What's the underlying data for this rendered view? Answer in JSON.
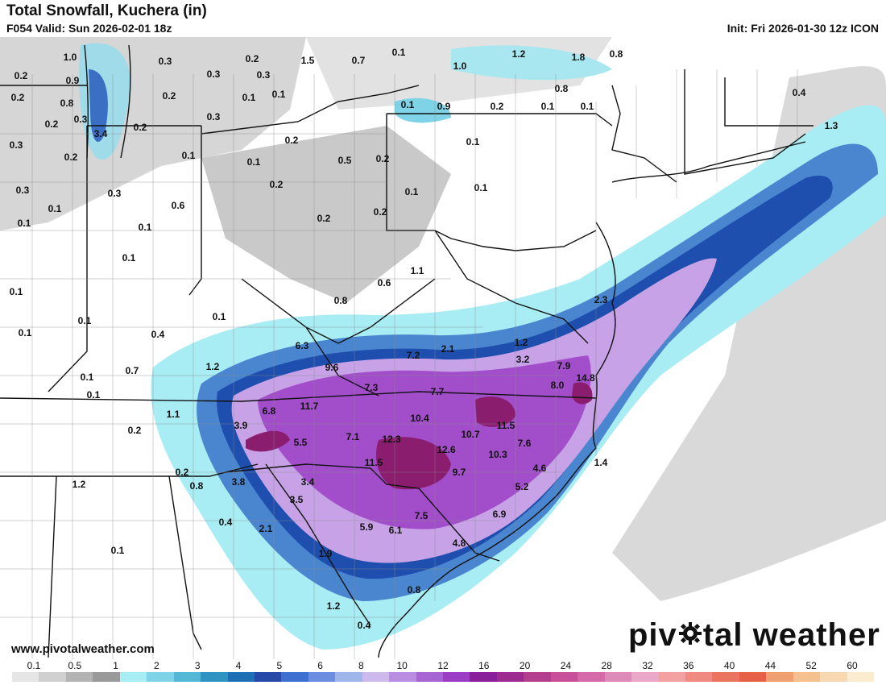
{
  "header": {
    "title": "Total Snowfall, Kuchera (in)",
    "valid": "F054 Valid: Sun 2026-02-01 18z",
    "init": "Init: Fri 2026-01-30 12z ICON"
  },
  "map_labels": [
    "1.0",
    "0.9",
    "0.8",
    "0.3",
    "3.4",
    "0.2",
    "0.2",
    "0.2",
    "0.2",
    "0.3",
    "0.3",
    "0.2",
    "0.3",
    "0.2",
    "0.1",
    "0.3",
    "0.3",
    "0.3",
    "0.6",
    "0.1",
    "0.1",
    "0.1",
    "0.1",
    "0.1",
    "1.5",
    "0.7",
    "0.1",
    "0.3",
    "0.2",
    "0.5",
    "0.1",
    "0.2",
    "0.1",
    "0.2",
    "0.2",
    "0.2",
    "0.2",
    "1.0",
    "1.2",
    "1.8",
    "0.8",
    "0.8",
    "0.1",
    "0.9",
    "0.2",
    "0.1",
    "0.1",
    "0.1",
    "0.1",
    "0.1",
    "1.1",
    "0.6",
    "0.8",
    "0.1",
    "0.1",
    "0.4",
    "0.1",
    "0.1",
    "0.7",
    "1.2",
    "6.3",
    "9.6",
    "7.2",
    "2.1",
    "1.2",
    "3.2",
    "7.9",
    "14.8",
    "8.0",
    "0.1",
    "7.3",
    "7.7",
    "0.1",
    "1.1",
    "6.8",
    "11.7",
    "3.9",
    "0.2",
    "5.5",
    "7.1",
    "12.3",
    "10.4",
    "10.7",
    "11.5",
    "7.6",
    "12.6",
    "10.3",
    "11.5",
    "9.7",
    "4.6",
    "1.4",
    "5.2",
    "0.2",
    "0.8",
    "3.8",
    "3.4",
    "3.5",
    "0.4",
    "2.1",
    "5.9",
    "6.1",
    "7.5",
    "6.9",
    "4.8",
    "1.9",
    "0.8",
    "1.2",
    "0.4",
    "2.3",
    "1.3",
    "0.4",
    "0.1",
    "1.2"
  ],
  "footer": {
    "site": "www.pivotalweather.com",
    "brand_left": "piv",
    "brand_right": "tal weather"
  },
  "legend": {
    "ticks": [
      "0.1",
      "0.5",
      "1",
      "2",
      "3",
      "4",
      "5",
      "6",
      "8",
      "10",
      "12",
      "16",
      "20",
      "24",
      "28",
      "32",
      "36",
      "40",
      "44",
      "52",
      "60"
    ],
    "colors": [
      "#e6e6e6",
      "#cfcfcf",
      "#b3b3b3",
      "#9a9a9a",
      "#a8ecf4",
      "#7fd3e6",
      "#55b7d6",
      "#2f94c2",
      "#1f6fb5",
      "#2648a8",
      "#3f6fd0",
      "#6b8ee0",
      "#9fb6ea",
      "#cdb9ec",
      "#b98ee0",
      "#a765d3",
      "#9a3fc5",
      "#8a1f9a",
      "#9c2c8f",
      "#b3408f",
      "#c8509a",
      "#d46aa8",
      "#de8ab8",
      "#e9a8c8",
      "#f2a0a0",
      "#ee8a80",
      "#ea7460",
      "#e66048",
      "#f0a070",
      "#f5c090",
      "#f8d8b0",
      "#fbecd0"
    ]
  }
}
